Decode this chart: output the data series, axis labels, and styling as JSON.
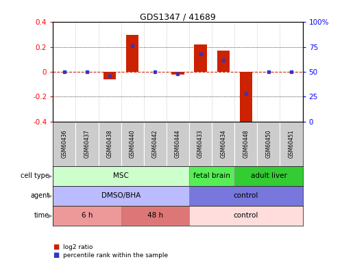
{
  "title": "GDS1347 / 41689",
  "samples": [
    "GSM60436",
    "GSM60437",
    "GSM60438",
    "GSM60440",
    "GSM60442",
    "GSM60444",
    "GSM60433",
    "GSM60434",
    "GSM60448",
    "GSM60450",
    "GSM60451"
  ],
  "log2_ratio": [
    0.0,
    0.0,
    -0.06,
    0.3,
    0.0,
    -0.02,
    0.22,
    0.17,
    -0.42,
    0.0,
    0.0
  ],
  "percentile_rank": [
    50,
    50,
    46,
    76,
    50,
    48,
    68,
    62,
    28,
    50,
    50
  ],
  "ylim": [
    -0.4,
    0.4
  ],
  "yticks_left": [
    -0.4,
    -0.2,
    0.0,
    0.2,
    0.4
  ],
  "ytick_labels_left": [
    "-0.4",
    "-0.2",
    "0",
    "0.2",
    "0.4"
  ],
  "yticks_right": [
    0,
    25,
    50,
    75,
    100
  ],
  "ytick_labels_right": [
    "0",
    "25",
    "50",
    "75",
    "100%"
  ],
  "bar_color": "#cc2200",
  "dot_color": "#3333cc",
  "hline_color": "#cc2200",
  "dotted_line_color": "#000000",
  "xtick_bg_color": "#cccccc",
  "cell_type_groups": [
    {
      "label": "MSC",
      "start": 0,
      "end": 5,
      "color": "#ccffcc"
    },
    {
      "label": "fetal brain",
      "start": 6,
      "end": 7,
      "color": "#55ee55"
    },
    {
      "label": "adult liver",
      "start": 8,
      "end": 10,
      "color": "#33cc33"
    }
  ],
  "agent_groups": [
    {
      "label": "DMSO/BHA",
      "start": 0,
      "end": 5,
      "color": "#bbbbff"
    },
    {
      "label": "control",
      "start": 6,
      "end": 10,
      "color": "#7777dd"
    }
  ],
  "time_groups": [
    {
      "label": "6 h",
      "start": 0,
      "end": 2,
      "color": "#ee9999"
    },
    {
      "label": "48 h",
      "start": 3,
      "end": 5,
      "color": "#dd7777"
    },
    {
      "label": "control",
      "start": 6,
      "end": 10,
      "color": "#ffdddd"
    }
  ],
  "row_labels": [
    "cell type",
    "agent",
    "time"
  ],
  "legend_bar_label": "log2 ratio",
  "legend_dot_label": "percentile rank within the sample",
  "bar_width": 0.55
}
